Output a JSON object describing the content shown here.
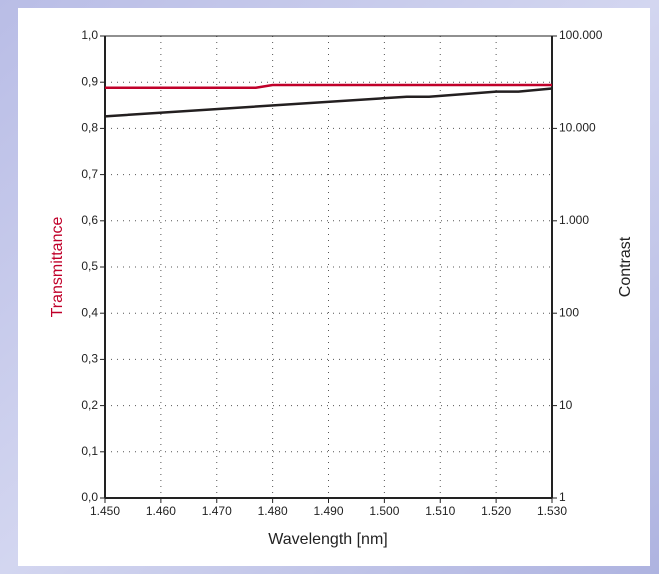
{
  "chart_data": {
    "type": "line",
    "x_label": "Wavelength [nm]",
    "y_label": "Transmittance",
    "y2_label": "Contrast",
    "xlim": [
      1450,
      1530
    ],
    "xticks": [
      {
        "value": 1450,
        "label": "1.450"
      },
      {
        "value": 1460,
        "label": "1.460"
      },
      {
        "value": 1470,
        "label": "1.470"
      },
      {
        "value": 1480,
        "label": "1.480"
      },
      {
        "value": 1490,
        "label": "1.490"
      },
      {
        "value": 1500,
        "label": "1.500"
      },
      {
        "value": 1510,
        "label": "1.510"
      },
      {
        "value": 1520,
        "label": "1.520"
      },
      {
        "value": 1530,
        "label": "1.530"
      }
    ],
    "ylim": [
      0,
      1
    ],
    "yticks": [
      {
        "value": 0,
        "label": "0,0"
      },
      {
        "value": 0.1,
        "label": "0,1"
      },
      {
        "value": 0.2,
        "label": "0,2"
      },
      {
        "value": 0.3,
        "label": "0,3"
      },
      {
        "value": 0.4,
        "label": "0,4"
      },
      {
        "value": 0.5,
        "label": "0,5"
      },
      {
        "value": 0.6,
        "label": "0,6"
      },
      {
        "value": 0.7,
        "label": "0,7"
      },
      {
        "value": 0.8,
        "label": "0,8"
      },
      {
        "value": 0.9,
        "label": "0,9"
      },
      {
        "value": 1,
        "label": "1,0"
      }
    ],
    "y2lim": [
      1,
      100000
    ],
    "y2_scale": "log",
    "y2ticks": [
      1,
      10,
      100,
      {
        "value": 1000,
        "label": "1.000"
      },
      {
        "value": 10000,
        "label": "10.000"
      },
      {
        "value": 100000,
        "label": "100.000"
      }
    ],
    "grid": true,
    "series": [
      {
        "color": "#c0002a",
        "axis": "y",
        "x": [
          1450,
          1477,
          1480,
          1530
        ],
        "values": [
          0.888,
          0.888,
          0.894,
          0.894
        ]
      },
      {
        "color": "#231f20",
        "axis": "y2",
        "x": [
          1450,
          1504,
          1508,
          1520,
          1524,
          1530
        ],
        "values": [
          13500,
          22000,
          22000,
          25000,
          25000,
          27000
        ]
      }
    ]
  }
}
